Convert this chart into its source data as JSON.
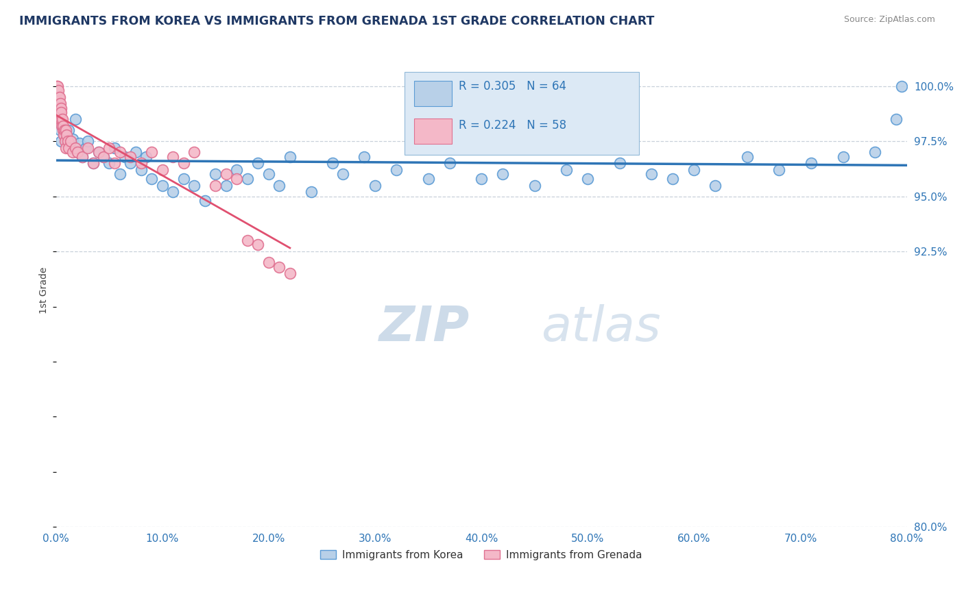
{
  "title": "IMMIGRANTS FROM KOREA VS IMMIGRANTS FROM GRENADA 1ST GRADE CORRELATION CHART",
  "source": "Source: ZipAtlas.com",
  "ylabel": "1st Grade",
  "y_labels": [
    "100.0%",
    "97.5%",
    "95.0%",
    "92.5%",
    "80.0%"
  ],
  "y_values": [
    100.0,
    97.5,
    95.0,
    92.5,
    80.0
  ],
  "xlim": [
    0.0,
    80.0
  ],
  "ylim": [
    80.0,
    101.5
  ],
  "korea_R": 0.305,
  "korea_N": 64,
  "grenada_R": 0.224,
  "grenada_N": 58,
  "korea_color": "#b8d0e8",
  "korea_edge_color": "#5b9bd5",
  "grenada_color": "#f4b8c8",
  "grenada_edge_color": "#e07090",
  "korea_line_color": "#2e75b6",
  "grenada_line_color": "#e05070",
  "legend_box_color": "#dce9f5",
  "legend_box_edge": "#90b8d8",
  "watermark_color": "#c8d8e8",
  "background_color": "#ffffff",
  "grid_color": "#c8d0da",
  "title_color": "#1f3864",
  "tick_color": "#2e75b6",
  "korea_scatter_x": [
    0.4,
    0.5,
    0.6,
    0.8,
    1.0,
    1.2,
    1.4,
    1.6,
    1.8,
    2.0,
    2.2,
    2.5,
    2.8,
    3.0,
    3.5,
    4.0,
    4.5,
    5.0,
    5.5,
    6.0,
    6.5,
    7.0,
    7.5,
    8.0,
    8.5,
    9.0,
    10.0,
    11.0,
    12.0,
    13.0,
    14.0,
    15.0,
    16.0,
    17.0,
    18.0,
    19.0,
    20.0,
    21.0,
    22.0,
    24.0,
    26.0,
    27.0,
    29.0,
    30.0,
    32.0,
    35.0,
    37.0,
    40.0,
    42.0,
    45.0,
    48.0,
    50.0,
    53.0,
    56.0,
    58.0,
    60.0,
    62.0,
    65.0,
    68.0,
    71.0,
    74.0,
    77.0,
    79.0,
    79.5
  ],
  "korea_scatter_y": [
    98.0,
    97.5,
    98.2,
    97.8,
    97.5,
    98.0,
    97.2,
    97.6,
    98.5,
    97.0,
    97.4,
    96.8,
    97.2,
    97.5,
    96.5,
    97.0,
    96.8,
    96.5,
    97.2,
    96.0,
    96.8,
    96.5,
    97.0,
    96.2,
    96.8,
    95.8,
    95.5,
    95.2,
    95.8,
    95.5,
    94.8,
    96.0,
    95.5,
    96.2,
    95.8,
    96.5,
    96.0,
    95.5,
    96.8,
    95.2,
    96.5,
    96.0,
    96.8,
    95.5,
    96.2,
    95.8,
    96.5,
    95.8,
    96.0,
    95.5,
    96.2,
    95.8,
    96.5,
    96.0,
    95.8,
    96.2,
    95.5,
    96.8,
    96.2,
    96.5,
    96.8,
    97.0,
    98.5,
    100.0
  ],
  "grenada_scatter_x": [
    0.05,
    0.08,
    0.1,
    0.12,
    0.15,
    0.18,
    0.2,
    0.22,
    0.25,
    0.28,
    0.3,
    0.32,
    0.35,
    0.38,
    0.4,
    0.42,
    0.45,
    0.48,
    0.5,
    0.55,
    0.6,
    0.65,
    0.7,
    0.75,
    0.8,
    0.85,
    0.9,
    0.95,
    1.0,
    1.1,
    1.2,
    1.4,
    1.6,
    1.8,
    2.0,
    2.5,
    3.0,
    3.5,
    4.0,
    4.5,
    5.0,
    5.5,
    6.0,
    7.0,
    8.0,
    9.0,
    10.0,
    11.0,
    12.0,
    13.0,
    15.0,
    16.0,
    17.0,
    18.0,
    19.0,
    20.0,
    21.0,
    22.0
  ],
  "grenada_scatter_y": [
    99.5,
    100.0,
    99.8,
    100.0,
    99.2,
    100.0,
    99.5,
    99.0,
    99.8,
    99.2,
    98.8,
    99.5,
    99.0,
    98.5,
    99.2,
    98.8,
    99.0,
    98.5,
    98.8,
    98.2,
    98.5,
    98.0,
    98.2,
    97.8,
    98.0,
    97.5,
    98.0,
    97.2,
    97.8,
    97.5,
    97.2,
    97.5,
    97.0,
    97.2,
    97.0,
    96.8,
    97.2,
    96.5,
    97.0,
    96.8,
    97.2,
    96.5,
    97.0,
    96.8,
    96.5,
    97.0,
    96.2,
    96.8,
    96.5,
    97.0,
    95.5,
    96.0,
    95.8,
    93.0,
    92.8,
    92.0,
    91.8,
    91.5
  ]
}
